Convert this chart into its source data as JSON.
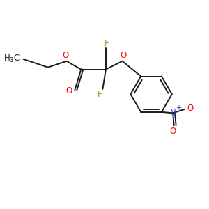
{
  "background_color": "#ffffff",
  "bond_color": "#1a1a1a",
  "F_color": "#b8860b",
  "O_color": "#ff0000",
  "N_color": "#3333cc",
  "H3C_color": "#1a1a1a",
  "figsize": [
    3.0,
    3.0
  ],
  "dpi": 100,
  "xlim": [
    0,
    10
  ],
  "ylim": [
    0,
    10
  ]
}
